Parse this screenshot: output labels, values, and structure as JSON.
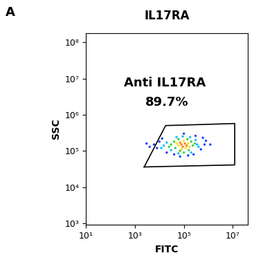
{
  "chart_data": {
    "type": "scatter",
    "title": "IL17RA",
    "panel_label": "A",
    "x_label": "FITC",
    "y_label": "SSC",
    "log": true,
    "annotations": [
      "Anti IL17RA",
      "89.7%"
    ],
    "xlim": [
      10,
      40000000
    ],
    "ylim": [
      900,
      180000000
    ],
    "xticks": [
      {
        "value": 10,
        "label": "10¹"
      },
      {
        "value": 1000,
        "label": "10³"
      },
      {
        "value": 100000,
        "label": "10⁵"
      },
      {
        "value": 10000000,
        "label": "10⁷"
      }
    ],
    "yticks": [
      {
        "value": 1000,
        "label": "10³"
      },
      {
        "value": 10000,
        "label": "10⁴"
      },
      {
        "value": 100000,
        "label": "10⁵"
      },
      {
        "value": 1000000,
        "label": "10⁶"
      },
      {
        "value": 10000000,
        "label": "10⁷"
      },
      {
        "value": 100000000,
        "label": "10⁸"
      }
    ],
    "gate": {
      "x": [
        2400,
        18000,
        12000000,
        12000000
      ],
      "y": [
        36000,
        500000,
        570000,
        41000
      ],
      "color": "#000000"
    },
    "x": [
      80000,
      110000,
      90000,
      130000,
      70000,
      60000,
      150000,
      100000,
      120000,
      50000,
      170000,
      80000,
      30000,
      40000,
      200000,
      230000,
      140000,
      60000,
      70000,
      160000,
      25000,
      280000,
      45000,
      100000,
      15000,
      20000,
      350000,
      300000,
      12000,
      50000,
      180000,
      200000,
      60000,
      30000,
      400000,
      90000,
      6000,
      8000,
      10000,
      4000,
      700000,
      500000,
      800000,
      300000,
      13000,
      20000,
      40000,
      150000,
      250000,
      600000,
      3000,
      1200000,
      100000,
      70000
    ],
    "y": [
      150000,
      160000,
      130000,
      140000,
      170000,
      140000,
      160000,
      190000,
      120000,
      160000,
      130000,
      110000,
      150000,
      180000,
      180000,
      140000,
      210000,
      210000,
      100000,
      105000,
      130000,
      160000,
      120000,
      90000,
      140000,
      170000,
      150000,
      200000,
      120000,
      240000,
      240000,
      90000,
      85000,
      105000,
      130000,
      250000,
      150000,
      120000,
      180000,
      130000,
      150000,
      110000,
      190000,
      260000,
      220000,
      90000,
      80000,
      75000,
      80000,
      230000,
      160000,
      150000,
      300000,
      70000
    ],
    "colors": [
      "#ff7f00",
      "#ff7f00",
      "#ff7f00",
      "#ff7f00",
      "#ff7f00",
      "#f0e020",
      "#f0e020",
      "#f0e020",
      "#f0e020",
      "#f0e020",
      "#f0e020",
      "#f0e020",
      "#3fd13f",
      "#3fd13f",
      "#3fd13f",
      "#3fd13f",
      "#3fd13f",
      "#3fd13f",
      "#3fd13f",
      "#3fd13f",
      "#3fd13f",
      "#3fd13f",
      "#3fd13f",
      "#3fd13f",
      "#00bfff",
      "#00bfff",
      "#00bfff",
      "#00bfff",
      "#00bfff",
      "#00bfff",
      "#00bfff",
      "#00bfff",
      "#00bfff",
      "#00bfff",
      "#00bfff",
      "#00bfff",
      "#1f3fff",
      "#1f3fff",
      "#1f3fff",
      "#1f3fff",
      "#1f3fff",
      "#1f3fff",
      "#1f3fff",
      "#1f3fff",
      "#1f3fff",
      "#1f3fff",
      "#1f3fff",
      "#1f3fff",
      "#1f3fff",
      "#1f3fff",
      "#1f3fff",
      "#1f3fff",
      "#1f3fff",
      "#1f3fff"
    ]
  }
}
